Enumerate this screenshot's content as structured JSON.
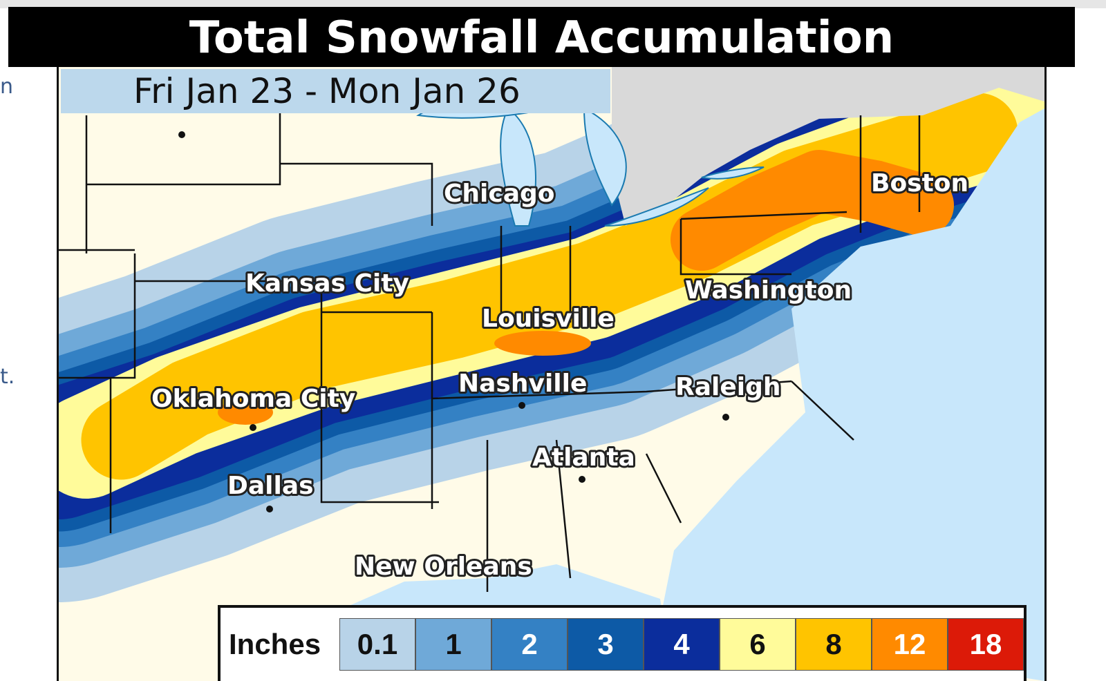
{
  "title": "Total Snowfall Accumulation",
  "subtitle": "Fri Jan 23 - Mon Jan 26",
  "side_fragments": [
    "n",
    "t."
  ],
  "cities": [
    {
      "name": "Chicago"
    },
    {
      "name": "Boston"
    },
    {
      "name": "Kansas City"
    },
    {
      "name": "Washington"
    },
    {
      "name": "Louisville"
    },
    {
      "name": "Nashville"
    },
    {
      "name": "Raleigh"
    },
    {
      "name": "Oklahoma City"
    },
    {
      "name": "Atlanta"
    },
    {
      "name": "Dallas"
    },
    {
      "name": "New Orleans"
    }
  ],
  "legend": {
    "title": "Inches",
    "bins": [
      {
        "label": "0.1",
        "color": "#b8d3e8",
        "text_color": "#111"
      },
      {
        "label": "1",
        "color": "#6fa9d8",
        "text_color": "#111"
      },
      {
        "label": "2",
        "color": "#3481c4",
        "text_color": "#fff"
      },
      {
        "label": "3",
        "color": "#0d5aa6",
        "text_color": "#fff"
      },
      {
        "label": "4",
        "color": "#0b2d9c",
        "text_color": "#fff"
      },
      {
        "label": "6",
        "color": "#fffb9a",
        "text_color": "#111"
      },
      {
        "label": "8",
        "color": "#ffc400",
        "text_color": "#111"
      },
      {
        "label": "12",
        "color": "#ff8a00",
        "text_color": "#fff"
      },
      {
        "label": "18",
        "color": "#dc1a08",
        "text_color": "#fff"
      }
    ]
  },
  "colors": {
    "land": "#fffbe8",
    "water": "#c8e7fb",
    "canada": "#d9d9d9",
    "title_bar": "#000000",
    "subtitle_bg": "#bcd8ec"
  }
}
